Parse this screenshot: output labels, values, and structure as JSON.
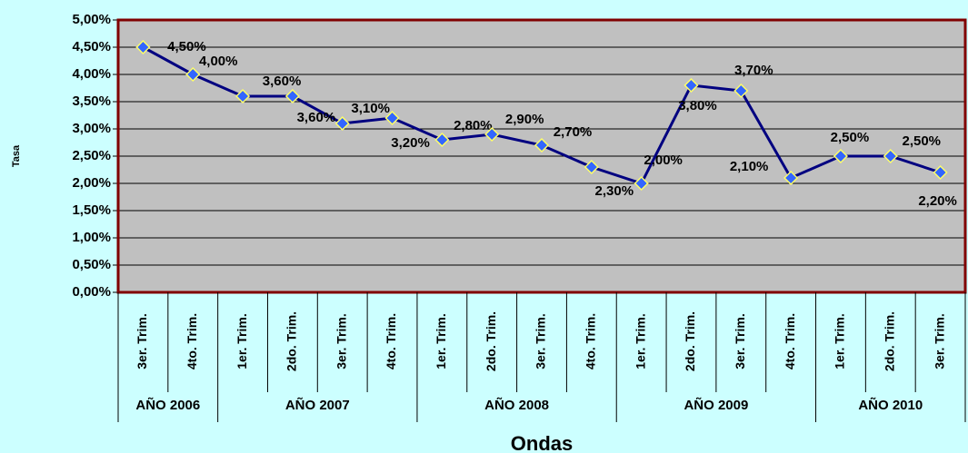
{
  "chart_data": {
    "type": "line",
    "ylabel": "Tasa",
    "xlabel": "Ondas",
    "groups": [
      {
        "name": "AÑO 2006",
        "categories": [
          "3er. Trim.",
          "4to. Trim."
        ]
      },
      {
        "name": "AÑO 2007",
        "categories": [
          "1er. Trim.",
          "2do. Trim.",
          "3er. Trim.",
          "4to. Trim."
        ]
      },
      {
        "name": "AÑO 2008",
        "categories": [
          "1er. Trim.",
          "2do. Trim.",
          "3er. Trim.",
          "4to. Trim."
        ]
      },
      {
        "name": "AÑO 2009",
        "categories": [
          "1er. Trim.",
          "2do. Trim.",
          "3er. Trim.",
          "4to. Trim."
        ]
      },
      {
        "name": "AÑO 2010",
        "categories": [
          "1er. Trim.",
          "2do. Trim.",
          "3er. Trim."
        ]
      }
    ],
    "values": [
      4.5,
      4.0,
      3.6,
      3.6,
      3.1,
      3.2,
      2.8,
      2.9,
      2.7,
      2.3,
      2.0,
      3.8,
      3.7,
      2.1,
      2.5,
      2.5,
      2.2
    ],
    "value_labels": [
      "4,50%",
      "4,00%",
      "3,60%",
      "3,60%",
      "3,10%",
      "3,20%",
      "2,80%",
      "2,90%",
      "2,70%",
      "2,30%",
      "2,00%",
      "3,80%",
      "3,70%",
      "2,10%",
      "2,50%",
      "2,50%",
      "2,20%"
    ],
    "color": "#000080",
    "marker_color": "#3366ff",
    "marker_edge": "#ffff66",
    "plot_background": "#c0c0c0",
    "plot_border": "#800000",
    "ylim": [
      0,
      5
    ],
    "yticks": [
      {
        "value": 0,
        "label": "0,00%"
      },
      {
        "value": 0.5,
        "label": "0,50%"
      },
      {
        "value": 1,
        "label": "1,00%"
      },
      {
        "value": 1.5,
        "label": "1,50%"
      },
      {
        "value": 2,
        "label": "2,00%"
      },
      {
        "value": 2.5,
        "label": "2,50%"
      },
      {
        "value": 3,
        "label": "3,00%"
      },
      {
        "value": 3.5,
        "label": "3,50%"
      },
      {
        "value": 4,
        "label": "4,00%"
      },
      {
        "value": 4.5,
        "label": "4,50%"
      },
      {
        "value": 5,
        "label": "5,00%"
      }
    ],
    "grid": true
  }
}
